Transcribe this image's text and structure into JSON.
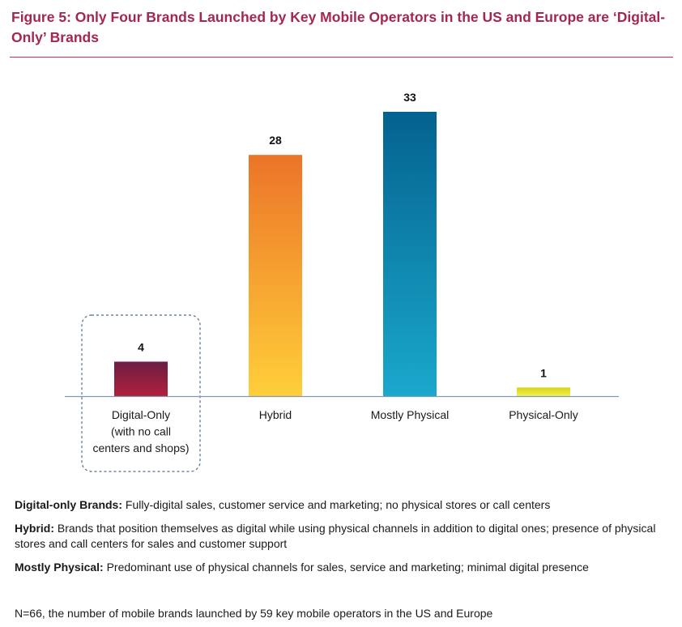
{
  "title": "Figure 5: Only Four Brands Launched by Key Mobile Operators in the US and Europe are ‘Digital-Only’ Brands",
  "chart_data": {
    "type": "bar",
    "categories": [
      [
        "Digital-Only",
        "(with no call",
        "centers and shops)"
      ],
      [
        "Hybrid"
      ],
      [
        "Mostly Physical"
      ],
      [
        "Physical-Only"
      ]
    ],
    "values": [
      4,
      28,
      33,
      1
    ],
    "highlighted_category": "Digital-Only",
    "colors": [
      [
        "#6b1e46",
        "#b0203c"
      ],
      [
        "#ec7428",
        "#ffcf3a"
      ],
      [
        "#04628f",
        "#1aa8cc"
      ],
      [
        "#d8d410",
        "#f2ef5a"
      ]
    ],
    "ylim": [
      0,
      33
    ],
    "grid": false,
    "legend": "none"
  },
  "definitions": [
    {
      "term": "Digital-only Brands:",
      "text": " Fully-digital sales, customer service and marketing; no physical stores or call centers"
    },
    {
      "term": "Hybrid:",
      "text": " Brands that position themselves as digital while using physical channels in addition to digital ones; presence of physical stores and call centers for sales and customer support"
    },
    {
      "term": "Mostly Physical:",
      "text": " Predominant use of physical channels for sales, service and marketing; minimal digital presence"
    }
  ],
  "footnote": "N=66, the number of mobile brands launched by 59 key mobile operators in the US and Europe"
}
